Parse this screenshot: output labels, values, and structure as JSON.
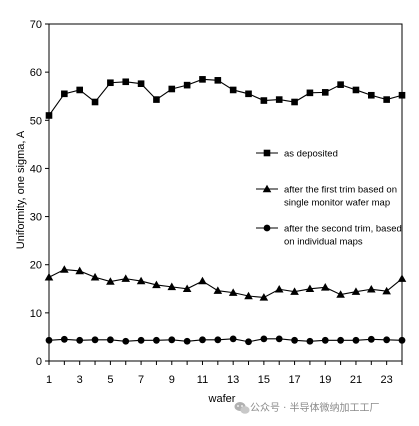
{
  "chart_data": {
    "type": "line",
    "title": "",
    "xlabel": "wafer",
    "ylabel": "Uniformity, one sigma, A",
    "xlim": [
      1,
      24
    ],
    "ylim": [
      0,
      70
    ],
    "x_tick_labels": [
      "1",
      "3",
      "5",
      "7",
      "9",
      "11",
      "13",
      "15",
      "17",
      "19",
      "21",
      "23"
    ],
    "y_tick_labels": [
      "0",
      "10",
      "20",
      "30",
      "40",
      "50",
      "60",
      "70"
    ],
    "grid": false,
    "legend_placement": "right",
    "x": [
      1,
      2,
      3,
      4,
      5,
      6,
      7,
      8,
      9,
      10,
      11,
      12,
      13,
      14,
      15,
      16,
      17,
      18,
      19,
      20,
      21,
      22,
      23,
      24
    ],
    "series": [
      {
        "name": "as deposited",
        "marker": "square",
        "values": [
          51.0,
          55.5,
          56.3,
          53.8,
          57.8,
          58.0,
          57.6,
          54.3,
          56.5,
          57.3,
          58.5,
          58.3,
          56.3,
          55.5,
          54.1,
          54.3,
          53.8,
          55.7,
          55.8,
          57.4,
          56.3,
          55.2,
          54.3,
          55.2
        ]
      },
      {
        "name": "after the first trim based on single monitor wafer map",
        "legend_lines": [
          "after the first trim based on",
          "single monitor wafer map"
        ],
        "marker": "triangle",
        "values": [
          17.4,
          19.0,
          18.7,
          17.4,
          16.5,
          17.1,
          16.6,
          15.8,
          15.4,
          15.0,
          16.6,
          14.6,
          14.2,
          13.5,
          13.2,
          14.9,
          14.4,
          15.0,
          15.3,
          13.8,
          14.4,
          14.9,
          14.5,
          17.1
        ]
      },
      {
        "name": "after the second trim, based on individual maps",
        "legend_lines": [
          "after the second trim, based",
          "on individual maps"
        ],
        "marker": "circle",
        "values": [
          4.3,
          4.5,
          4.3,
          4.4,
          4.4,
          4.1,
          4.3,
          4.3,
          4.4,
          4.1,
          4.4,
          4.4,
          4.6,
          4.0,
          4.6,
          4.6,
          4.3,
          4.1,
          4.3,
          4.3,
          4.3,
          4.5,
          4.4,
          4.3
        ]
      }
    ],
    "colors": {
      "line": "#000000",
      "background": "#ffffff"
    }
  },
  "watermark": {
    "text": "公众号 · 半导体微纳加工工厂",
    "icon": "wechat-icon"
  }
}
